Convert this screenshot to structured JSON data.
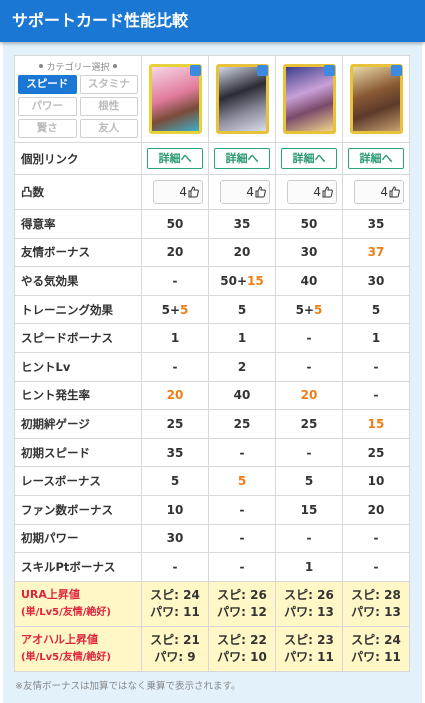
{
  "header": {
    "title": "サポートカード性能比較"
  },
  "category": {
    "label": "カテゴリー選択",
    "options": [
      "スピード",
      "スタミナ",
      "パワー",
      "根性",
      "賢さ",
      "友人"
    ],
    "selected": 0
  },
  "link_row": {
    "label": "個別リンク",
    "cells": [
      "詳細へ",
      "詳細へ",
      "詳細へ",
      "詳細へ"
    ]
  },
  "limit_break_row": {
    "label": "凸数",
    "cells": [
      "4",
      "4",
      "4",
      "4"
    ]
  },
  "rows": [
    {
      "label": "得意率",
      "cells": [
        "50",
        "35",
        "50",
        "35"
      ]
    },
    {
      "label": "友情ボーナス",
      "cells": [
        "20",
        "20",
        "30",
        {
          "text": "37",
          "highlight": true
        }
      ]
    },
    {
      "label": "やる気効果",
      "cells": [
        "-",
        {
          "base": "50+",
          "bonus": "15"
        },
        "40",
        "30"
      ]
    },
    {
      "label": "トレーニング効果",
      "cells": [
        {
          "base": "5+",
          "bonus": "5"
        },
        "5",
        {
          "base": "5+",
          "bonus": "5"
        },
        "5"
      ]
    },
    {
      "label": "スピードボーナス",
      "cells": [
        "1",
        "1",
        "-",
        "1"
      ]
    },
    {
      "label": "ヒントLv",
      "cells": [
        "-",
        "2",
        "-",
        "-"
      ]
    },
    {
      "label": "ヒント発生率",
      "cells": [
        {
          "text": "20",
          "highlight": true
        },
        "40",
        {
          "text": "20",
          "highlight": true
        },
        "-"
      ]
    },
    {
      "label": "初期絆ゲージ",
      "cells": [
        "25",
        "25",
        "25",
        {
          "text": "15",
          "highlight": true
        }
      ]
    },
    {
      "label": "初期スピード",
      "cells": [
        "35",
        "-",
        "-",
        "25"
      ]
    },
    {
      "label": "レースボーナス",
      "cells": [
        "5",
        {
          "text": "5",
          "highlight": true
        },
        "5",
        "10"
      ]
    },
    {
      "label": "ファン数ボーナス",
      "cells": [
        "10",
        "-",
        "15",
        "20"
      ]
    },
    {
      "label": "初期パワー",
      "cells": [
        "30",
        "-",
        "-",
        "-"
      ]
    },
    {
      "label": "スキルPtボーナス",
      "cells": [
        "-",
        "-",
        "1",
        "-"
      ]
    }
  ],
  "bonus_rows": [
    {
      "label": "URA上昇値",
      "sub": "(単/Lv5/友情/絶好)",
      "cells": [
        [
          "スピ: 24",
          "パワ: 11"
        ],
        [
          "スピ: 26",
          "パワ: 12"
        ],
        [
          "スピ: 26",
          "パワ: 13"
        ],
        [
          "スピ: 28",
          "パワ: 13"
        ]
      ]
    },
    {
      "label": "アオハル上昇値",
      "sub": "(単/Lv5/友情/絶好)",
      "cells": [
        [
          "スピ: 21",
          "パワ: 9"
        ],
        [
          "スピ: 22",
          "パワ: 10"
        ],
        [
          "スピ: 23",
          "パワ: 11"
        ],
        [
          "スピ: 24",
          "パワ: 11"
        ]
      ]
    }
  ],
  "footer": {
    "note": "※友情ボーナスは加算ではなく乗算で表示されます。"
  }
}
